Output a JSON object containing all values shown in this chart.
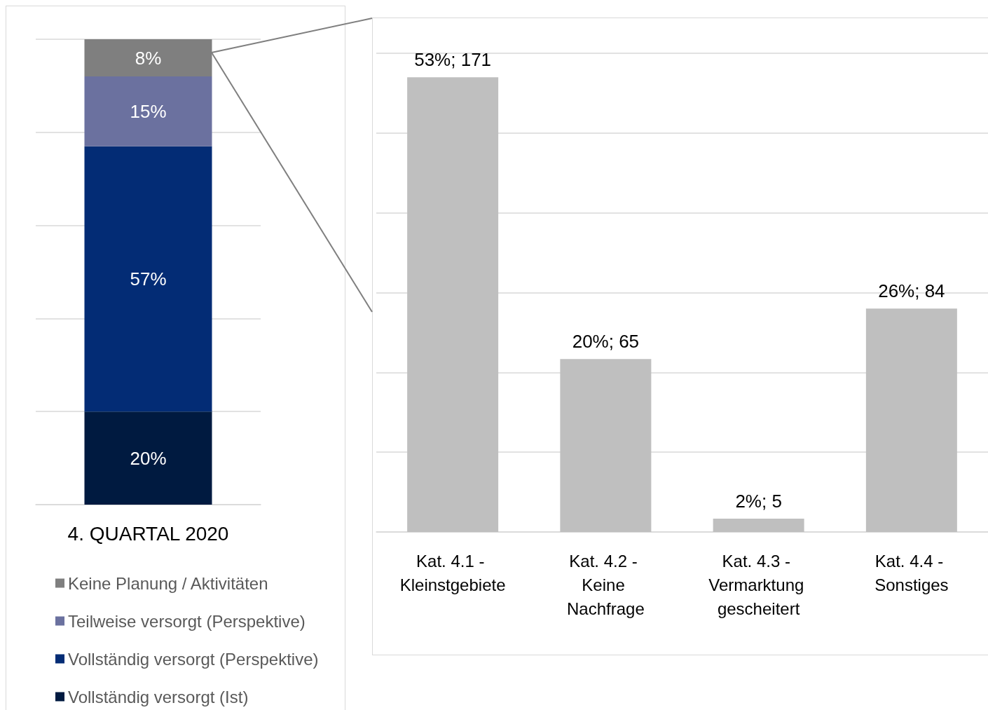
{
  "chart_data": [
    {
      "type": "bar",
      "stacked": true,
      "categories": [
        "4. QUARTAL 2020"
      ],
      "tick_labels": "x",
      "grid": "y",
      "legend": "bottom",
      "series": [
        {
          "name": "Vollständig versorgt (Ist)",
          "color": "#001a40",
          "values": [
            20
          ],
          "value_labels": [
            "20%"
          ]
        },
        {
          "name": "Vollständig versorgt (Perspektive)",
          "color": "#032c75",
          "values": [
            57
          ],
          "value_labels": [
            "57%"
          ]
        },
        {
          "name": "Teilweise versorgt (Perspektive)",
          "color": "#6b719f",
          "values": [
            15
          ],
          "value_labels": [
            "15%"
          ]
        },
        {
          "name": "Keine Planung / Aktivitäten",
          "color": "#7f7f7f",
          "values": [
            8
          ],
          "value_labels": [
            "8%"
          ]
        }
      ]
    },
    {
      "type": "bar",
      "categories": [
        "Kat. 4.1 - Kleinstgebiete",
        "Kat. 4.2 - Keine Nachfrage",
        "Kat. 4.3 - Vermarktung gescheitert",
        "Kat. 4.4 - Sonstiges"
      ],
      "tick_labels": "x",
      "grid": "y",
      "series": [
        {
          "color": "#bfbfbf",
          "values": [
            171,
            65,
            5,
            84
          ],
          "value_labels": [
            "53%; 171",
            "20%; 65",
            "2%; 5",
            "26%; 84"
          ]
        }
      ]
    }
  ]
}
